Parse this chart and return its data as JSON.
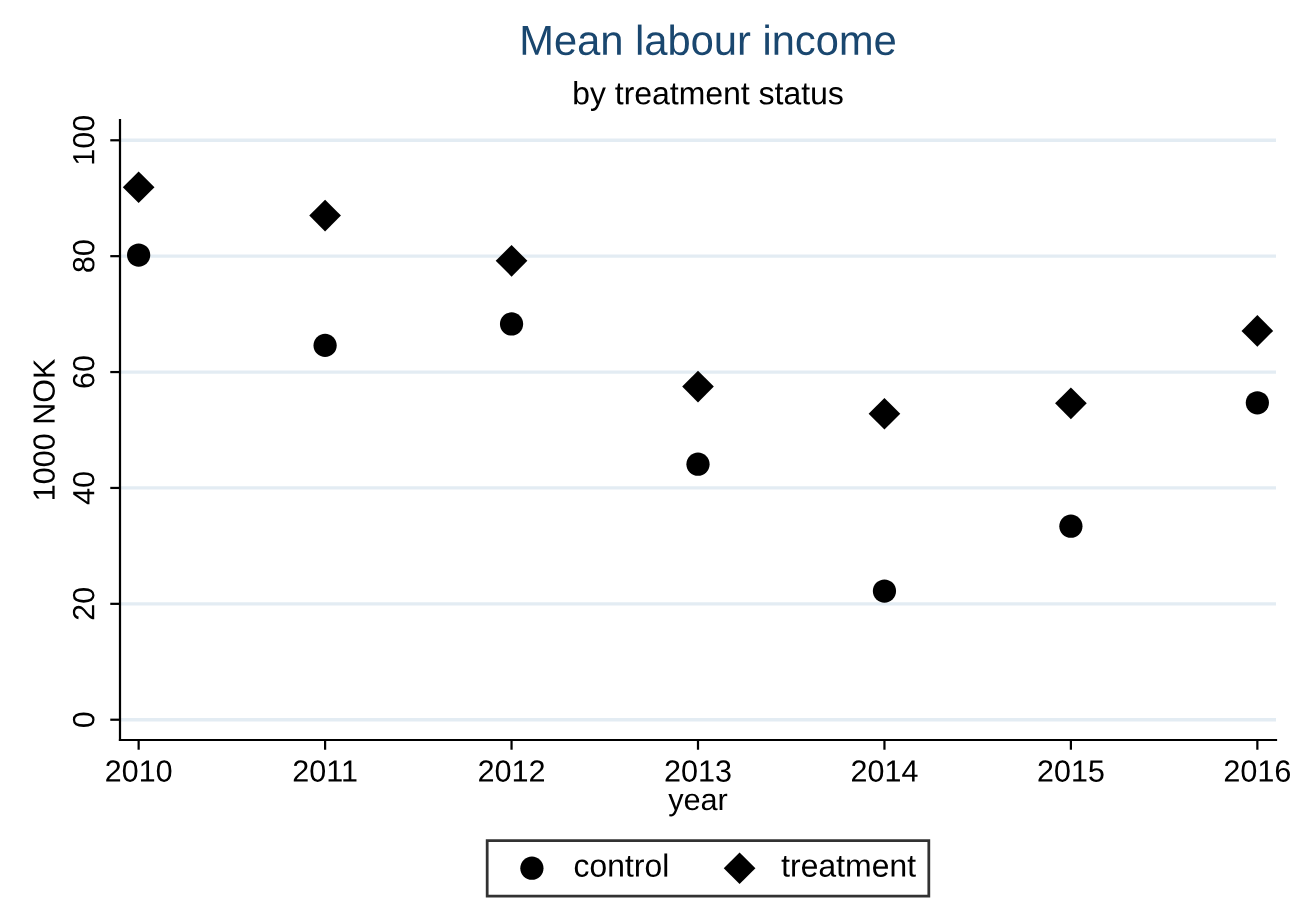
{
  "chart_data": {
    "type": "scatter",
    "title": "Mean labour income",
    "subtitle": "by treatment status",
    "xlabel": "year",
    "ylabel": "1000 NOK",
    "x": [
      2010,
      2011,
      2012,
      2013,
      2014,
      2015,
      2016
    ],
    "series": [
      {
        "name": "control",
        "color": "#000000",
        "marker": "circle",
        "values": [
          80.2,
          64.6,
          68.3,
          44.1,
          22.2,
          33.4,
          54.7
        ]
      },
      {
        "name": "treatment",
        "color": "#000000",
        "marker": "diamond",
        "values": [
          91.9,
          87.0,
          79.2,
          57.5,
          52.8,
          54.6,
          67.1
        ]
      }
    ],
    "xlim": [
      2009.9,
      2016.1
    ],
    "xticks": [
      2010,
      2011,
      2012,
      2013,
      2014,
      2015,
      2016
    ],
    "ylim": [
      -3.5,
      103.5
    ],
    "yticks": [
      0,
      20,
      40,
      60,
      80,
      100
    ],
    "grid": "y",
    "legend": "bottom"
  }
}
